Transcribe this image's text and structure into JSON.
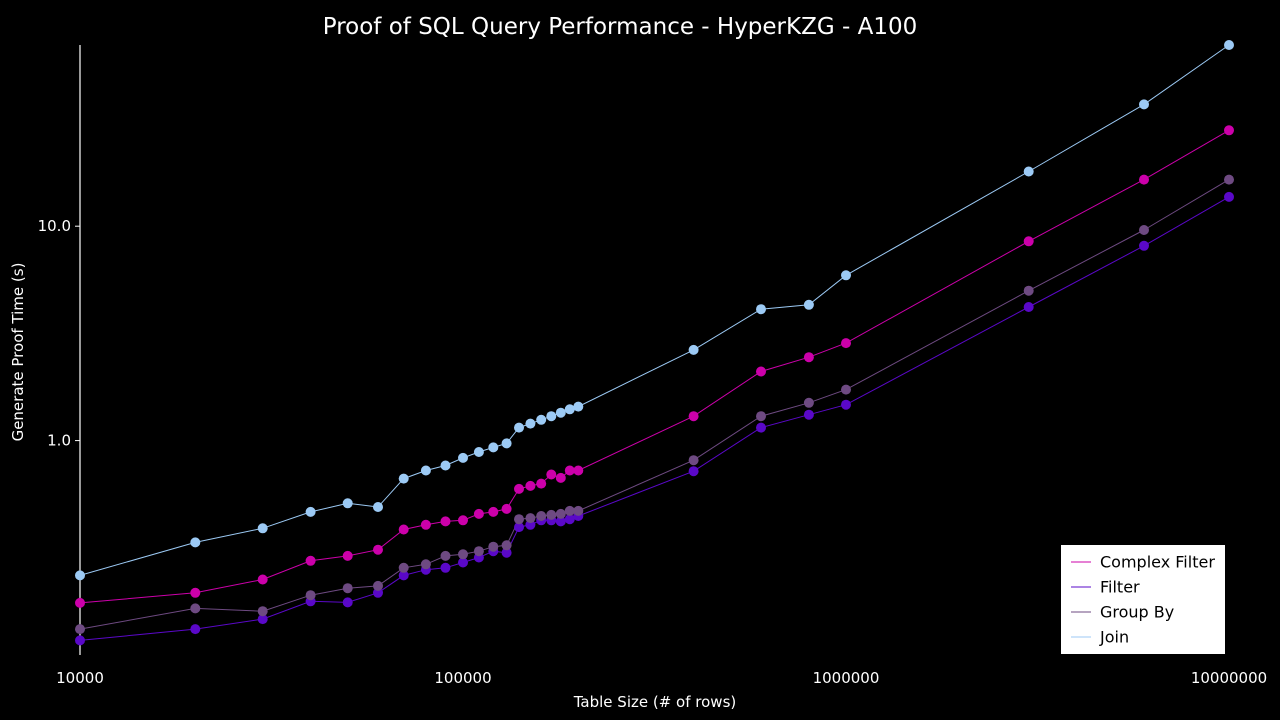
{
  "chart_data": {
    "type": "line",
    "title": "Proof of SQL Query Performance - HyperKZG - A100",
    "xlabel": "Table Size (# of rows)",
    "ylabel": "Generate Proof Time (s)",
    "xscale": "log",
    "yscale": "log",
    "xlim": [
      10000,
      10000000
    ],
    "ylim": [
      0.1,
      70
    ],
    "x_ticks": [
      10000,
      100000,
      1000000,
      10000000
    ],
    "x_tick_labels": [
      "10000",
      "100000",
      "1000000",
      "10000000"
    ],
    "y_ticks": [
      1.0,
      10.0
    ],
    "y_tick_labels": [
      "1.0",
      "10.0"
    ],
    "grid": false,
    "legend_position": "bottom-right",
    "series": [
      {
        "name": "Complex Filter",
        "color": "#cc00aa",
        "points": [
          [
            10000,
            0.175
          ],
          [
            20000,
            0.195
          ],
          [
            30000,
            0.225
          ],
          [
            40000,
            0.275
          ],
          [
            50000,
            0.29
          ],
          [
            60000,
            0.31
          ],
          [
            70000,
            0.385
          ],
          [
            80000,
            0.405
          ],
          [
            90000,
            0.42
          ],
          [
            100000,
            0.425
          ],
          [
            110000,
            0.455
          ],
          [
            120000,
            0.465
          ],
          [
            130000,
            0.48
          ],
          [
            140000,
            0.595
          ],
          [
            150000,
            0.615
          ],
          [
            160000,
            0.63
          ],
          [
            170000,
            0.695
          ],
          [
            180000,
            0.67
          ],
          [
            190000,
            0.725
          ],
          [
            200000,
            0.725
          ],
          [
            400000,
            1.3
          ],
          [
            600000,
            2.1
          ],
          [
            800000,
            2.45
          ],
          [
            1000000,
            2.85
          ],
          [
            3000000,
            8.5
          ],
          [
            6000000,
            16.5
          ],
          [
            10000000,
            28
          ]
        ]
      },
      {
        "name": "Filter",
        "color": "#5a08c8",
        "points": [
          [
            10000,
            0.117
          ],
          [
            20000,
            0.132
          ],
          [
            30000,
            0.147
          ],
          [
            40000,
            0.178
          ],
          [
            50000,
            0.176
          ],
          [
            60000,
            0.195
          ],
          [
            70000,
            0.235
          ],
          [
            80000,
            0.25
          ],
          [
            90000,
            0.255
          ],
          [
            100000,
            0.27
          ],
          [
            110000,
            0.285
          ],
          [
            120000,
            0.305
          ],
          [
            130000,
            0.3
          ],
          [
            140000,
            0.395
          ],
          [
            150000,
            0.405
          ],
          [
            160000,
            0.425
          ],
          [
            170000,
            0.425
          ],
          [
            180000,
            0.42
          ],
          [
            190000,
            0.43
          ],
          [
            200000,
            0.445
          ],
          [
            400000,
            0.72
          ],
          [
            600000,
            1.15
          ],
          [
            800000,
            1.32
          ],
          [
            1000000,
            1.47
          ],
          [
            3000000,
            4.2
          ],
          [
            6000000,
            8.1
          ],
          [
            10000000,
            13.7
          ]
        ]
      },
      {
        "name": "Group By",
        "color": "#6e4a82",
        "points": [
          [
            10000,
            0.132
          ],
          [
            20000,
            0.165
          ],
          [
            30000,
            0.16
          ],
          [
            40000,
            0.19
          ],
          [
            50000,
            0.205
          ],
          [
            60000,
            0.21
          ],
          [
            70000,
            0.255
          ],
          [
            80000,
            0.265
          ],
          [
            90000,
            0.29
          ],
          [
            100000,
            0.295
          ],
          [
            110000,
            0.305
          ],
          [
            120000,
            0.32
          ],
          [
            130000,
            0.325
          ],
          [
            140000,
            0.43
          ],
          [
            150000,
            0.435
          ],
          [
            160000,
            0.445
          ],
          [
            170000,
            0.45
          ],
          [
            180000,
            0.455
          ],
          [
            190000,
            0.47
          ],
          [
            200000,
            0.47
          ],
          [
            400000,
            0.81
          ],
          [
            600000,
            1.3
          ],
          [
            800000,
            1.5
          ],
          [
            1000000,
            1.73
          ],
          [
            3000000,
            5.0
          ],
          [
            6000000,
            9.6
          ],
          [
            10000000,
            16.5
          ]
        ]
      },
      {
        "name": "Join",
        "color": "#9ccaf5",
        "points": [
          [
            10000,
            0.235
          ],
          [
            20000,
            0.335
          ],
          [
            30000,
            0.39
          ],
          [
            40000,
            0.465
          ],
          [
            50000,
            0.51
          ],
          [
            60000,
            0.49
          ],
          [
            70000,
            0.665
          ],
          [
            80000,
            0.725
          ],
          [
            90000,
            0.765
          ],
          [
            100000,
            0.83
          ],
          [
            110000,
            0.885
          ],
          [
            120000,
            0.93
          ],
          [
            130000,
            0.97
          ],
          [
            140000,
            1.15
          ],
          [
            150000,
            1.2
          ],
          [
            160000,
            1.25
          ],
          [
            170000,
            1.3
          ],
          [
            180000,
            1.35
          ],
          [
            190000,
            1.4
          ],
          [
            200000,
            1.44
          ],
          [
            400000,
            2.65
          ],
          [
            600000,
            4.1
          ],
          [
            800000,
            4.3
          ],
          [
            1000000,
            5.9
          ],
          [
            3000000,
            18
          ],
          [
            6000000,
            37
          ],
          [
            10000000,
            70
          ]
        ]
      }
    ]
  }
}
